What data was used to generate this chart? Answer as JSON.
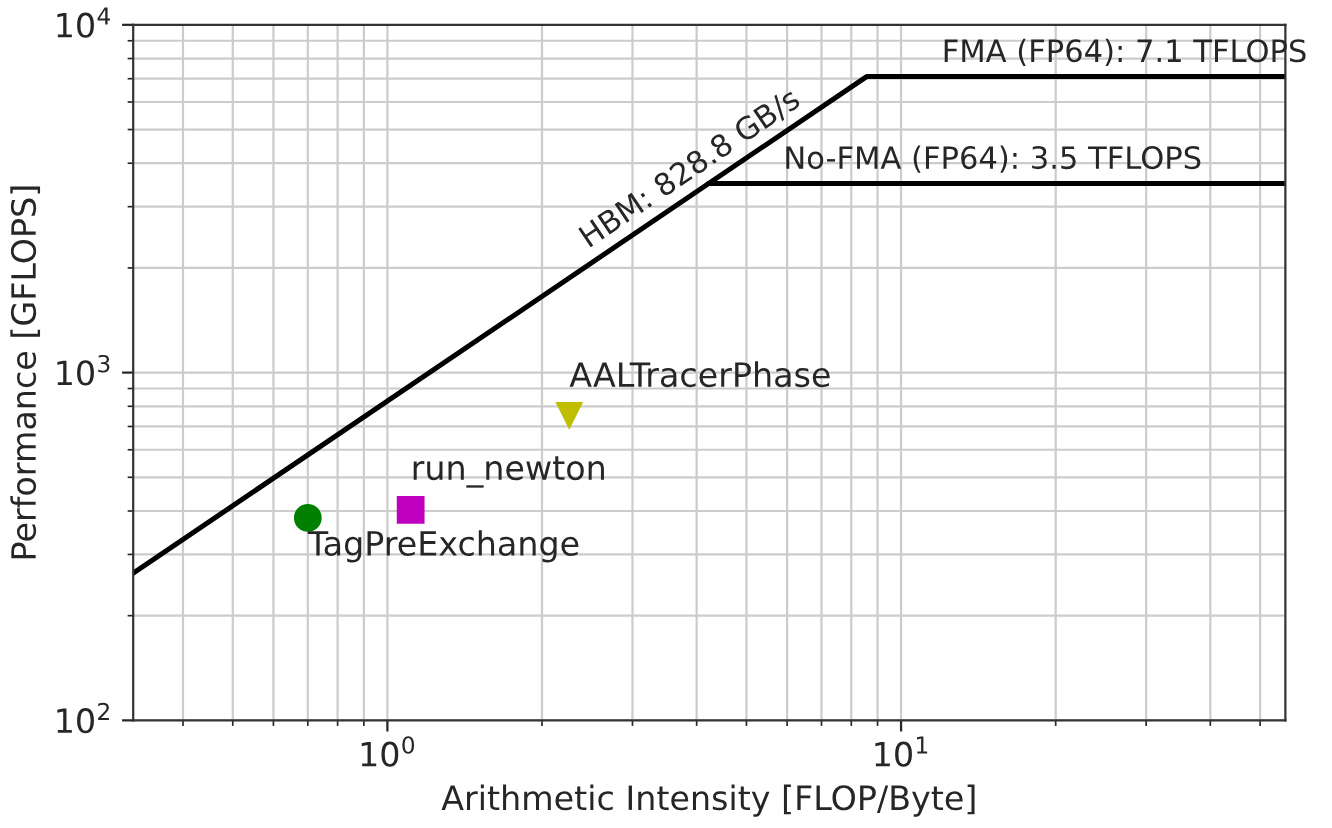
{
  "chart_data": {
    "type": "line",
    "xlabel": "Arithmetic Intensity [FLOP/Byte]",
    "ylabel": "Performance [GFLOPS]",
    "log": "xy",
    "grid": true,
    "legend": false,
    "xlim": [
      0.32,
      56
    ],
    "ylim": [
      100,
      10000
    ],
    "xticks": [
      {
        "value": 1,
        "label": "10$^{0}$"
      },
      {
        "value": 10,
        "label": "10$^{1}$"
      }
    ],
    "yticks": [
      {
        "value": 100,
        "label": "10$^{2}$"
      },
      {
        "value": 1000,
        "label": "10$^{3}$"
      },
      {
        "value": 10000,
        "label": "10$^{4}$"
      }
    ],
    "series": [
      {
        "color": "#000000",
        "line_style": "solid",
        "marker": "none",
        "x": [
          0.32,
          8.57,
          56
        ],
        "values": [
          265,
          7100,
          7100
        ]
      },
      {
        "color": "#000000",
        "line_style": "solid",
        "marker": "none",
        "x": [
          4.22,
          56
        ],
        "values": [
          3500,
          3500
        ]
      },
      {
        "type": "scatter",
        "name": "TagPreExchange",
        "color": "#008000",
        "marker": "circle",
        "x": [
          0.7
        ],
        "values": [
          382
        ]
      },
      {
        "type": "scatter",
        "name": "run_newton",
        "color": "#bf00bf",
        "marker": "square",
        "x": [
          1.11
        ],
        "values": [
          403
        ]
      },
      {
        "type": "scatter",
        "name": "AALTracerPhase",
        "color": "#bfbf00",
        "marker": "triangle",
        "x": [
          2.26
        ],
        "values": [
          751
        ]
      }
    ],
    "annotations": [
      {
        "text": "HBM: 828.8 GB/s",
        "x": 2.5,
        "y": 2072
      },
      {
        "text": "FMA (FP64): 7.1 TFLOPS",
        "x": 12,
        "y": 7100
      },
      {
        "text": "No-FMA (FP64): 3.5 TFLOPS",
        "x": 5.9,
        "y": 3500
      }
    ]
  }
}
